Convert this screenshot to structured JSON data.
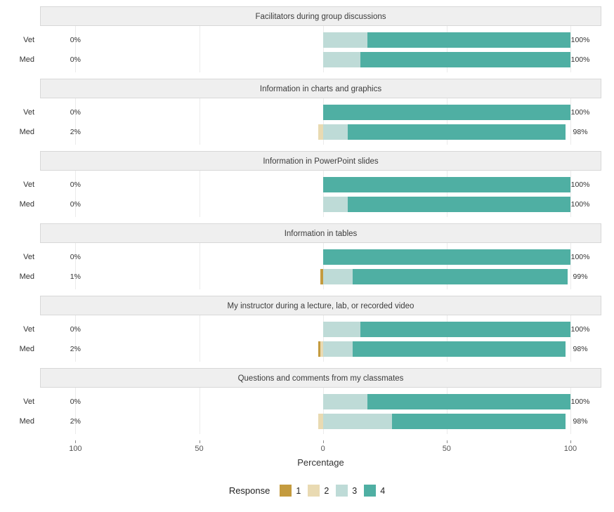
{
  "chart_data": {
    "type": "bar",
    "subtype": "diverging-stacked-likert",
    "xlabel": "Percentage",
    "xlim": [
      -114.3,
      112.5
    ],
    "x_ticks": [
      -100,
      -50,
      0,
      50,
      100
    ],
    "x_tick_labels": [
      "100",
      "50",
      "0",
      "50",
      "100"
    ],
    "grid": "light-vertical-gridlines",
    "legend_position": "bottom-center",
    "colors": {
      "1": "#c49b3f",
      "2": "#e9dab2",
      "3": "#bedbd7",
      "4": "#4fafa3"
    },
    "legend": {
      "title": "Response",
      "entries": [
        "1",
        "2",
        "3",
        "4"
      ]
    },
    "panels": [
      {
        "title": "Facilitators during group discussions",
        "rows": [
          {
            "label": "Vet",
            "left_label": "0%",
            "right_label": "100%",
            "values": {
              "1": 0,
              "2": 0,
              "3": 18,
              "4": 82
            }
          },
          {
            "label": "Med",
            "left_label": "0%",
            "right_label": "100%",
            "values": {
              "1": 0,
              "2": 0,
              "3": 15,
              "4": 85
            }
          }
        ]
      },
      {
        "title": "Information in charts and graphics",
        "rows": [
          {
            "label": "Vet",
            "left_label": "0%",
            "right_label": "100%",
            "values": {
              "1": 0,
              "2": 0,
              "3": 0,
              "4": 100
            }
          },
          {
            "label": "Med",
            "left_label": "2%",
            "right_label": "98%",
            "values": {
              "1": 0,
              "2": 2,
              "3": 10,
              "4": 88
            }
          }
        ]
      },
      {
        "title": "Information in PowerPoint slides",
        "rows": [
          {
            "label": "Vet",
            "left_label": "0%",
            "right_label": "100%",
            "values": {
              "1": 0,
              "2": 0,
              "3": 0,
              "4": 100
            }
          },
          {
            "label": "Med",
            "left_label": "0%",
            "right_label": "100%",
            "values": {
              "1": 0,
              "2": 0,
              "3": 10,
              "4": 90
            }
          }
        ]
      },
      {
        "title": "Information in tables",
        "rows": [
          {
            "label": "Vet",
            "left_label": "0%",
            "right_label": "100%",
            "values": {
              "1": 0,
              "2": 0,
              "3": 0,
              "4": 100
            }
          },
          {
            "label": "Med",
            "left_label": "1%",
            "right_label": "99%",
            "values": {
              "1": 1,
              "2": 0,
              "3": 12,
              "4": 87
            }
          }
        ]
      },
      {
        "title": "My instructor during a lecture, lab, or recorded video",
        "rows": [
          {
            "label": "Vet",
            "left_label": "0%",
            "right_label": "100%",
            "values": {
              "1": 0,
              "2": 0,
              "3": 15,
              "4": 85
            }
          },
          {
            "label": "Med",
            "left_label": "2%",
            "right_label": "98%",
            "values": {
              "1": 1,
              "2": 1,
              "3": 12,
              "4": 86
            }
          }
        ]
      },
      {
        "title": "Questions and comments from my classmates",
        "rows": [
          {
            "label": "Vet",
            "left_label": "0%",
            "right_label": "100%",
            "values": {
              "1": 0,
              "2": 0,
              "3": 18,
              "4": 82
            }
          },
          {
            "label": "Med",
            "left_label": "2%",
            "right_label": "98%",
            "values": {
              "1": 0,
              "2": 2,
              "3": 28,
              "4": 70
            }
          }
        ]
      }
    ]
  }
}
